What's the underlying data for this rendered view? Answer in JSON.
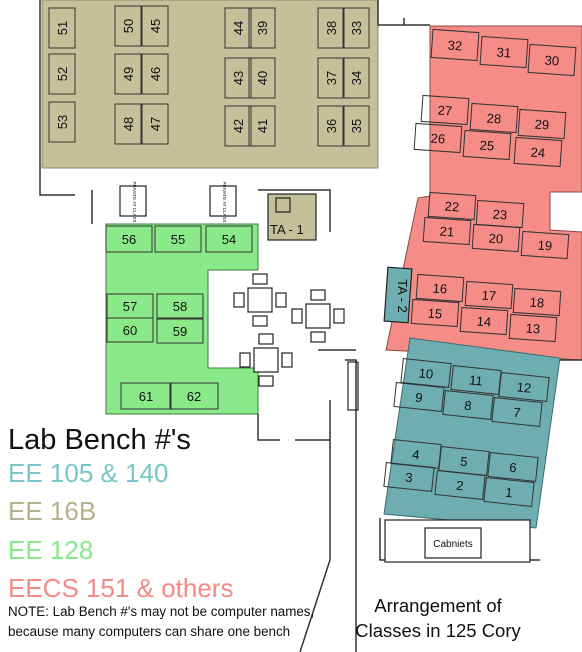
{
  "title": "Lab Bench #'s",
  "legend": [
    {
      "label": "EE 105 & 140",
      "color": "#79c6c9"
    },
    {
      "label": "EE 16B",
      "color": "#b5b18e"
    },
    {
      "label": "EE 128",
      "color": "#86e886"
    },
    {
      "label": "EECS 151 & others",
      "color": "#f48a86"
    }
  ],
  "note_lines": [
    "NOTE: Lab Bench #'s may not be computer names,",
    "because many computers can share one bench"
  ],
  "caption_lines": [
    "Arrangement of",
    "Classes in 125 Cory"
  ],
  "labels": {
    "ta1": "TA - 1",
    "ta2": "TA - 2",
    "cabinets": "Cabniets",
    "door_left": "PRIVATE AT CLASS",
    "door_right": "PRIVATE AT CLASS"
  },
  "benches": {
    "ee16b": [
      "51",
      "52",
      "53",
      "50",
      "49",
      "48",
      "45",
      "46",
      "47",
      "44",
      "43",
      "42",
      "39",
      "40",
      "41",
      "38",
      "37",
      "36",
      "33",
      "34",
      "35"
    ],
    "ee128": [
      "56",
      "55",
      "54",
      "57",
      "58",
      "60",
      "59",
      "61",
      "62"
    ],
    "eecs151": [
      "32",
      "31",
      "30",
      "27",
      "28",
      "29",
      "26",
      "25",
      "24",
      "22",
      "23",
      "21",
      "20",
      "19",
      "16",
      "17",
      "18",
      "15",
      "14",
      "13"
    ],
    "ee105_140": [
      "10",
      "11",
      "12",
      "9",
      "8",
      "7",
      "4",
      "5",
      "6",
      "3",
      "2",
      "1"
    ]
  }
}
